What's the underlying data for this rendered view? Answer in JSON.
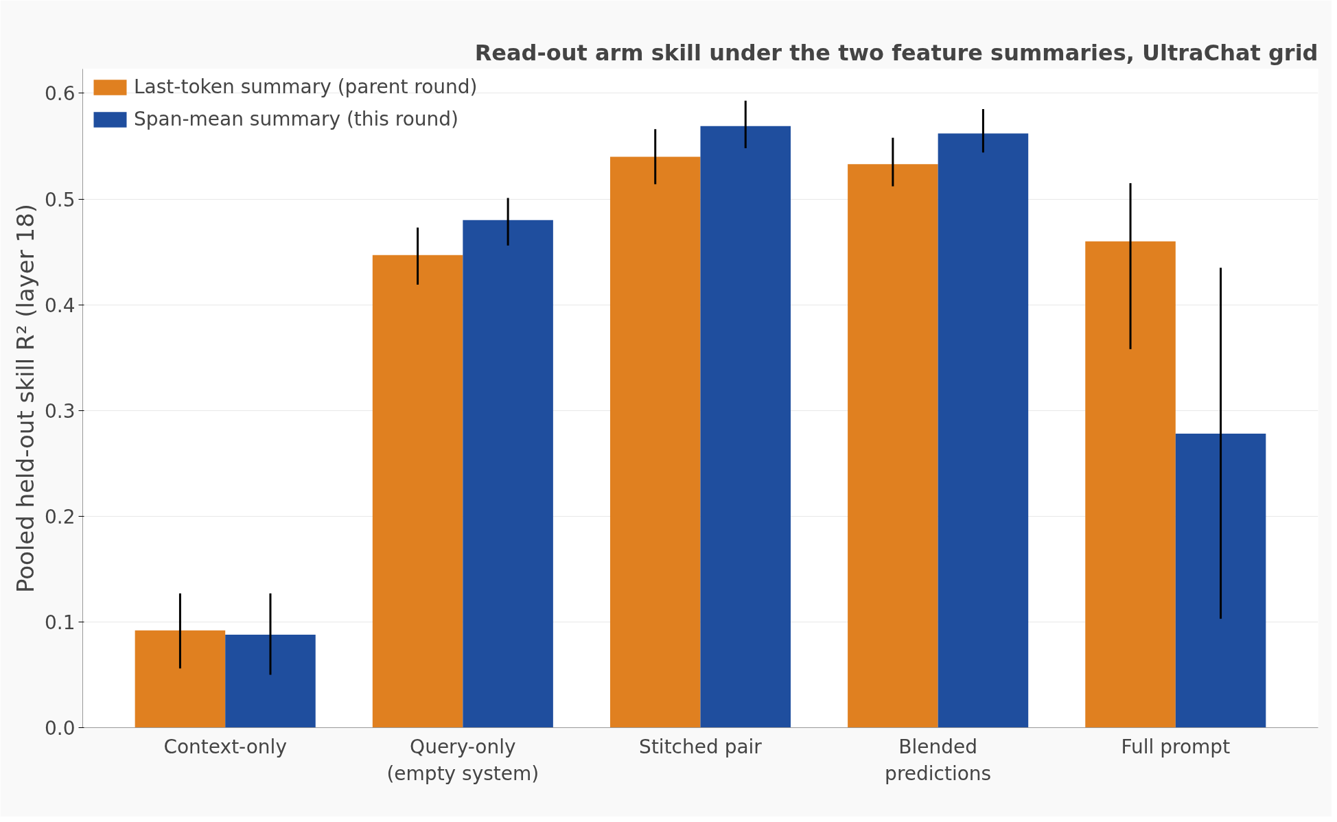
{
  "chart_data": {
    "type": "bar",
    "title": "Read-out arm skill under the two feature summaries, UltraChat grid",
    "ylabel": "Pooled held-out skill R² (layer 18)",
    "categories": [
      "Context-only",
      "Query-only\n(empty system)",
      "Stitched pair",
      "Blended\npredictions",
      "Full prompt"
    ],
    "series": [
      {
        "name": "Last-token summary (parent round)",
        "color": "#e08020",
        "values": [
          0.092,
          0.447,
          0.54,
          0.533,
          0.46
        ],
        "errors": [
          [
            0.056,
            0.127
          ],
          [
            0.419,
            0.473
          ],
          [
            0.514,
            0.566
          ],
          [
            0.512,
            0.558
          ],
          [
            0.358,
            0.515
          ]
        ]
      },
      {
        "name": "Span-mean summary (this round)",
        "color": "#1f4e9e",
        "values": [
          0.088,
          0.48,
          0.569,
          0.562,
          0.278
        ],
        "errors": [
          [
            0.05,
            0.127
          ],
          [
            0.456,
            0.501
          ],
          [
            0.548,
            0.593
          ],
          [
            0.544,
            0.585
          ],
          [
            0.103,
            0.435
          ]
        ]
      }
    ],
    "ylim": [
      0,
      0.623
    ],
    "yticks": [
      {
        "value": 0,
        "label": "0.0"
      },
      0.1,
      0.2,
      0.3,
      0.4,
      0.5,
      0.6
    ],
    "grid": "y",
    "legend": "top left"
  }
}
